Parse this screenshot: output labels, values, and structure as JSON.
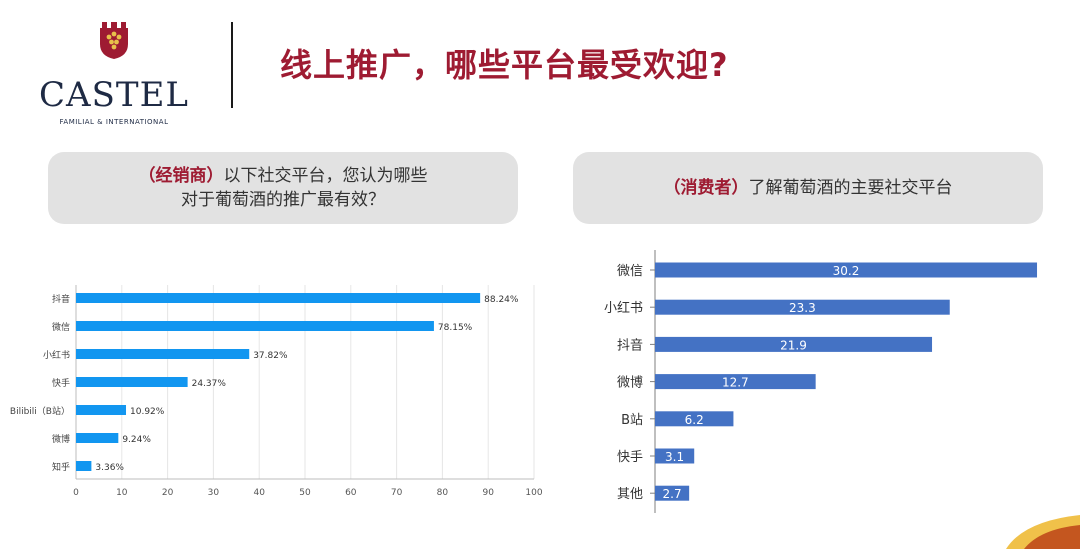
{
  "logo": {
    "name": "CASTEL",
    "tagline": "FAMILIAL & INTERNATIONAL"
  },
  "title": "线上推广，哪些平台最受欢迎?",
  "left_question": {
    "tag": "（经销商）",
    "line1": "以下社交平台，您认为哪些",
    "line2": "对于葡萄酒的推广最有效？"
  },
  "right_question": {
    "tag": "（消费者）",
    "text": "了解葡萄酒的主要社交平台"
  },
  "colors": {
    "left_bar": "#1296f0",
    "right_bar": "#4472c4",
    "accent": "#9e1b32"
  },
  "chart_data": [
    {
      "type": "bar",
      "orientation": "horizontal",
      "categories": [
        "抖音",
        "微信",
        "小红书",
        "快手",
        "Bilibili（B站）",
        "微博",
        "知乎"
      ],
      "values": [
        88.24,
        78.15,
        37.82,
        24.37,
        10.92,
        9.24,
        3.36
      ],
      "value_labels": [
        "88.24%",
        "78.15%",
        "37.82%",
        "24.37%",
        "10.92%",
        "9.24%",
        "3.36%"
      ],
      "xlim": [
        0,
        100
      ],
      "xticks": [
        "0",
        "10",
        "20",
        "30",
        "40",
        "50",
        "60",
        "70",
        "80",
        "90",
        "100"
      ],
      "grid": true
    },
    {
      "type": "bar",
      "orientation": "horizontal",
      "categories": [
        "微信",
        "小红书",
        "抖音",
        "微博",
        "B站",
        "快手",
        "其他"
      ],
      "values": [
        30.2,
        23.3,
        21.9,
        12.7,
        6.2,
        3.1,
        2.7
      ],
      "value_labels": [
        "30.2",
        "23.3",
        "21.9",
        "12.7",
        "6.2",
        "3.1",
        "2.7"
      ],
      "xlim": [
        0,
        31.6
      ],
      "grid": false
    }
  ]
}
